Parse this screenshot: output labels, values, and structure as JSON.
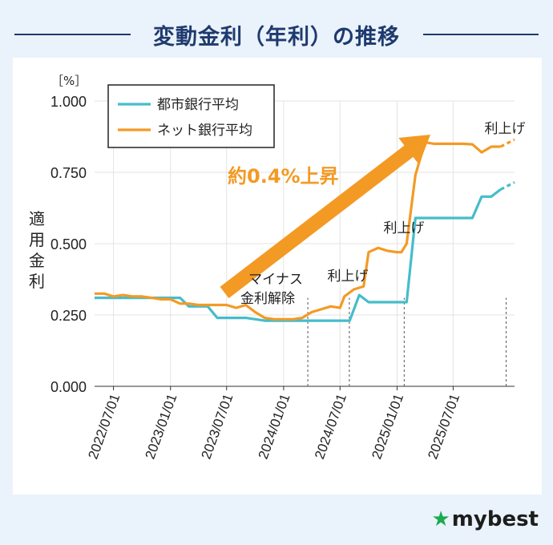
{
  "header": {
    "title": "変動金利（年利）の推移"
  },
  "brand": {
    "logo_text": "mybest"
  },
  "chart_data": {
    "type": "line",
    "yunit": "［%］",
    "ylabel": "適用金利",
    "ylim": [
      0,
      1.0
    ],
    "yticks": [
      "0.000",
      "0.250",
      "0.500",
      "0.750",
      "1.000"
    ],
    "xlim": [
      "2022-05-01",
      "2026-01-15"
    ],
    "xticks": [
      {
        "date": "2022-07-01",
        "label": "2022/07/01"
      },
      {
        "date": "2023-01-01",
        "label": "2023/01/01"
      },
      {
        "date": "2023-07-01",
        "label": "2023/07/01"
      },
      {
        "date": "2024-01-01",
        "label": "2024/01/01"
      },
      {
        "date": "2024-07-01",
        "label": "2024/07/01"
      },
      {
        "date": "2025-01-01",
        "label": "2025/01/01"
      },
      {
        "date": "2025-07-01",
        "label": "2025/07/01"
      }
    ],
    "grid": true,
    "legend": "top-left",
    "series": [
      {
        "name": "都市銀行平均",
        "color": "#46bccb",
        "points": [
          [
            "2022-05-01",
            0.31
          ],
          [
            "2022-07-01",
            0.31
          ],
          [
            "2022-10-01",
            0.31
          ],
          [
            "2023-01-01",
            0.31
          ],
          [
            "2023-02-01",
            0.31
          ],
          [
            "2023-03-01",
            0.28
          ],
          [
            "2023-05-01",
            0.28
          ],
          [
            "2023-06-01",
            0.24
          ],
          [
            "2023-09-01",
            0.24
          ],
          [
            "2023-11-01",
            0.23
          ],
          [
            "2024-02-01",
            0.23
          ],
          [
            "2024-06-01",
            0.23
          ],
          [
            "2024-08-01",
            0.23
          ],
          [
            "2024-09-01",
            0.32
          ],
          [
            "2024-10-01",
            0.295
          ],
          [
            "2024-12-01",
            0.295
          ],
          [
            "2025-01-01",
            0.295
          ],
          [
            "2025-02-01",
            0.295
          ],
          [
            "2025-03-01",
            0.59
          ],
          [
            "2025-05-01",
            0.59
          ],
          [
            "2025-07-01",
            0.59
          ],
          [
            "2025-09-01",
            0.59
          ],
          [
            "2025-10-01",
            0.665
          ],
          [
            "2025-11-01",
            0.665
          ],
          [
            "2025-12-01",
            0.69
          ]
        ],
        "forecast": [
          [
            "2025-12-01",
            0.69
          ],
          [
            "2026-01-15",
            0.715
          ]
        ]
      },
      {
        "name": "ネット銀行平均",
        "color": "#f39a24",
        "points": [
          [
            "2022-05-01",
            0.325
          ],
          [
            "2022-06-01",
            0.325
          ],
          [
            "2022-07-01",
            0.315
          ],
          [
            "2022-08-01",
            0.32
          ],
          [
            "2022-09-01",
            0.315
          ],
          [
            "2022-10-01",
            0.315
          ],
          [
            "2022-11-01",
            0.31
          ],
          [
            "2022-12-01",
            0.305
          ],
          [
            "2023-01-01",
            0.305
          ],
          [
            "2023-02-01",
            0.29
          ],
          [
            "2023-03-01",
            0.29
          ],
          [
            "2023-04-01",
            0.285
          ],
          [
            "2023-05-01",
            0.285
          ],
          [
            "2023-06-01",
            0.285
          ],
          [
            "2023-07-01",
            0.285
          ],
          [
            "2023-08-01",
            0.275
          ],
          [
            "2023-09-01",
            0.285
          ],
          [
            "2023-10-01",
            0.26
          ],
          [
            "2023-11-01",
            0.24
          ],
          [
            "2023-12-01",
            0.235
          ],
          [
            "2024-01-01",
            0.235
          ],
          [
            "2024-02-01",
            0.235
          ],
          [
            "2024-03-01",
            0.24
          ],
          [
            "2024-04-01",
            0.26
          ],
          [
            "2024-05-01",
            0.27
          ],
          [
            "2024-06-01",
            0.28
          ],
          [
            "2024-07-01",
            0.275
          ],
          [
            "2024-07-15",
            0.315
          ],
          [
            "2024-08-15",
            0.34
          ],
          [
            "2024-09-15",
            0.35
          ],
          [
            "2024-10-01",
            0.47
          ],
          [
            "2024-11-01",
            0.485
          ],
          [
            "2024-12-01",
            0.475
          ],
          [
            "2025-01-01",
            0.47
          ],
          [
            "2025-01-15",
            0.47
          ],
          [
            "2025-02-01",
            0.5
          ],
          [
            "2025-03-01",
            0.74
          ],
          [
            "2025-04-01",
            0.855
          ],
          [
            "2025-05-01",
            0.85
          ],
          [
            "2025-06-01",
            0.85
          ],
          [
            "2025-07-01",
            0.85
          ],
          [
            "2025-08-01",
            0.85
          ],
          [
            "2025-09-01",
            0.848
          ],
          [
            "2025-10-01",
            0.82
          ],
          [
            "2025-11-01",
            0.84
          ],
          [
            "2025-12-01",
            0.84
          ]
        ],
        "forecast": [
          [
            "2025-12-01",
            0.84
          ],
          [
            "2026-01-15",
            0.865
          ]
        ]
      }
    ],
    "event_lines": [
      "2024-03-19",
      "2024-07-31",
      "2025-01-24",
      "2025-12-19"
    ],
    "annotations": {
      "minus": "マイナス\n金利解除",
      "hike1": "利上げ",
      "hike2": "利上げ",
      "hike3": "利上げ",
      "trend": "約0.4%上昇"
    }
  }
}
